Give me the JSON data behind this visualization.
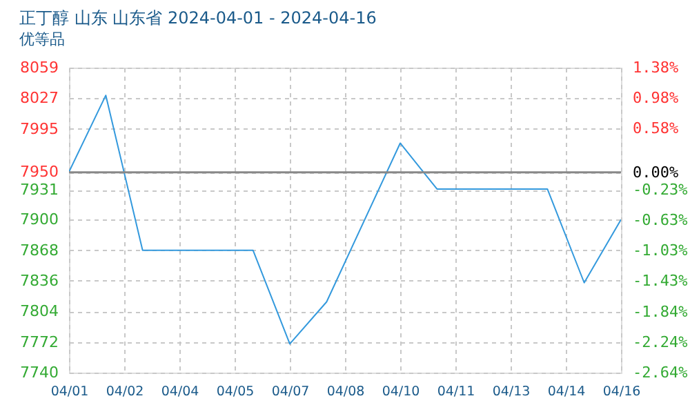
{
  "chart_data": {
    "type": "line",
    "title": "正丁醇 山东 山东省 2024-04-01 - 2024-04-16",
    "subtitle": "优等品",
    "x": [
      "2024-04-01",
      "2024-04-02",
      "2024-04-03",
      "2024-04-06",
      "2024-04-07",
      "2024-04-08",
      "2024-04-10",
      "2024-04-11",
      "2024-04-14",
      "2024-04-15",
      "2024-04-16"
    ],
    "series": [
      {
        "color": "#3399dd",
        "values": [
          7950,
          8030,
          7868,
          7868,
          7770,
          7814,
          7980,
          7932,
          7932,
          7834,
          7900
        ]
      }
    ],
    "xlim": [
      "2024-04-01",
      "2024-04-16"
    ],
    "xticks": [
      {
        "value": "2024-04-01",
        "label": "04/01"
      },
      {
        "value": "2024-04-02T12:00",
        "label": "04/02"
      },
      {
        "value": "2024-04-04",
        "label": "04/04"
      },
      {
        "value": "2024-04-05T12:00",
        "label": "04/05"
      },
      {
        "value": "2024-04-07",
        "label": "04/07"
      },
      {
        "value": "2024-04-08T12:00",
        "label": "04/08"
      },
      {
        "value": "2024-04-10",
        "label": "04/10"
      },
      {
        "value": "2024-04-11T12:00",
        "label": "04/11"
      },
      {
        "value": "2024-04-13",
        "label": "04/13"
      },
      {
        "value": "2024-04-14T12:00",
        "label": "04/14"
      },
      {
        "value": "2024-04-16",
        "label": "04/16"
      }
    ],
    "ylim": [
      7740,
      8059
    ],
    "yticks": [
      8059,
      8027,
      7995,
      7950,
      7931,
      7900,
      7868,
      7836,
      7804,
      7772,
      7740
    ],
    "y2lim": [
      -2.64,
      1.38
    ],
    "y2ticks": [
      {
        "value": 1.38,
        "label": "1.38%"
      },
      {
        "value": 0.98,
        "label": "0.98%"
      },
      {
        "value": 0.58,
        "label": "0.58%"
      },
      {
        "value": 0,
        "label": "0.00%"
      },
      {
        "value": -0.23,
        "label": "-0.23%"
      },
      {
        "value": -0.63,
        "label": "-0.63%"
      },
      {
        "value": -1.03,
        "label": "-1.03%"
      },
      {
        "value": -1.43,
        "label": "-1.43%"
      },
      {
        "value": -1.84,
        "label": "-1.84%"
      },
      {
        "value": -2.24,
        "label": "-2.24%"
      },
      {
        "value": -2.64,
        "label": "-2.64%"
      }
    ],
    "ref_lines": [
      {
        "axis": "y2",
        "value": 0,
        "color": "#888888",
        "line_style": "solid"
      }
    ],
    "grid": true,
    "marker": "none",
    "line_style": "solid"
  }
}
